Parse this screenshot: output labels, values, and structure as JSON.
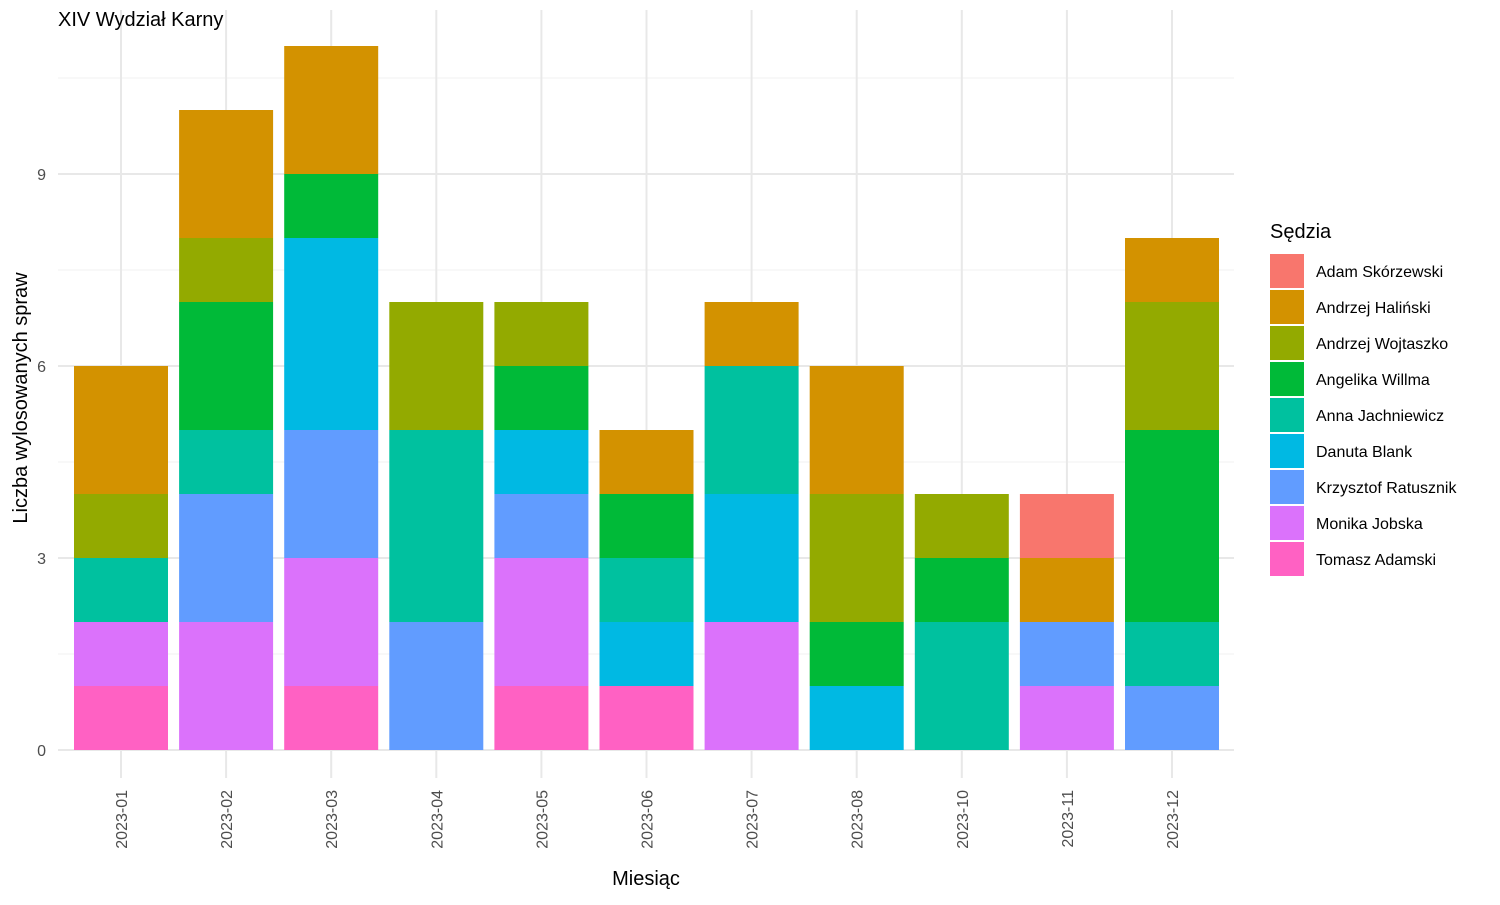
{
  "chart_data": {
    "type": "bar",
    "stacked": true,
    "title": "XIV Wydział Karny",
    "xlabel": "Miesiąc",
    "ylabel": "Liczba wylosowanych spraw",
    "ylim": [
      0,
      11
    ],
    "yticks": [
      0,
      3,
      6,
      9
    ],
    "grid": true,
    "legend_title": "Sędzia",
    "legend_position": "right",
    "categories": [
      "2023-01",
      "2023-02",
      "2023-03",
      "2023-04",
      "2023-05",
      "2023-06",
      "2023-07",
      "2023-08",
      "2023-10",
      "2023-11",
      "2023-12"
    ],
    "series": [
      {
        "name": "Adam Skórzewski",
        "color": "#F8766D",
        "values": [
          0,
          0,
          0,
          0,
          0,
          0,
          0,
          0,
          0,
          1,
          0
        ]
      },
      {
        "name": "Andrzej Haliński",
        "color": "#D39200",
        "values": [
          2,
          2,
          2,
          0,
          0,
          1,
          1,
          2,
          0,
          1,
          1
        ]
      },
      {
        "name": "Andrzej Wojtaszko",
        "color": "#93AA00",
        "values": [
          1,
          1,
          0,
          2,
          1,
          0,
          0,
          2,
          1,
          0,
          2
        ]
      },
      {
        "name": "Angelika Willma",
        "color": "#00BA38",
        "values": [
          0,
          2,
          1,
          0,
          1,
          1,
          0,
          1,
          1,
          0,
          3
        ]
      },
      {
        "name": "Anna Jachniewicz",
        "color": "#00C19F",
        "values": [
          1,
          1,
          0,
          3,
          0,
          1,
          2,
          0,
          2,
          0,
          1
        ]
      },
      {
        "name": "Danuta Blank",
        "color": "#00B9E3",
        "values": [
          0,
          0,
          3,
          0,
          1,
          1,
          2,
          1,
          0,
          0,
          0
        ]
      },
      {
        "name": "Krzysztof Ratusznik",
        "color": "#619CFF",
        "values": [
          0,
          2,
          2,
          2,
          1,
          0,
          0,
          0,
          0,
          1,
          1
        ]
      },
      {
        "name": "Monika Jobska",
        "color": "#DB72FB",
        "values": [
          1,
          2,
          2,
          0,
          2,
          0,
          2,
          0,
          0,
          1,
          0
        ]
      },
      {
        "name": "Tomasz Adamski",
        "color": "#FF61C3",
        "values": [
          1,
          0,
          1,
          0,
          1,
          1,
          0,
          0,
          0,
          0,
          0
        ]
      }
    ]
  }
}
